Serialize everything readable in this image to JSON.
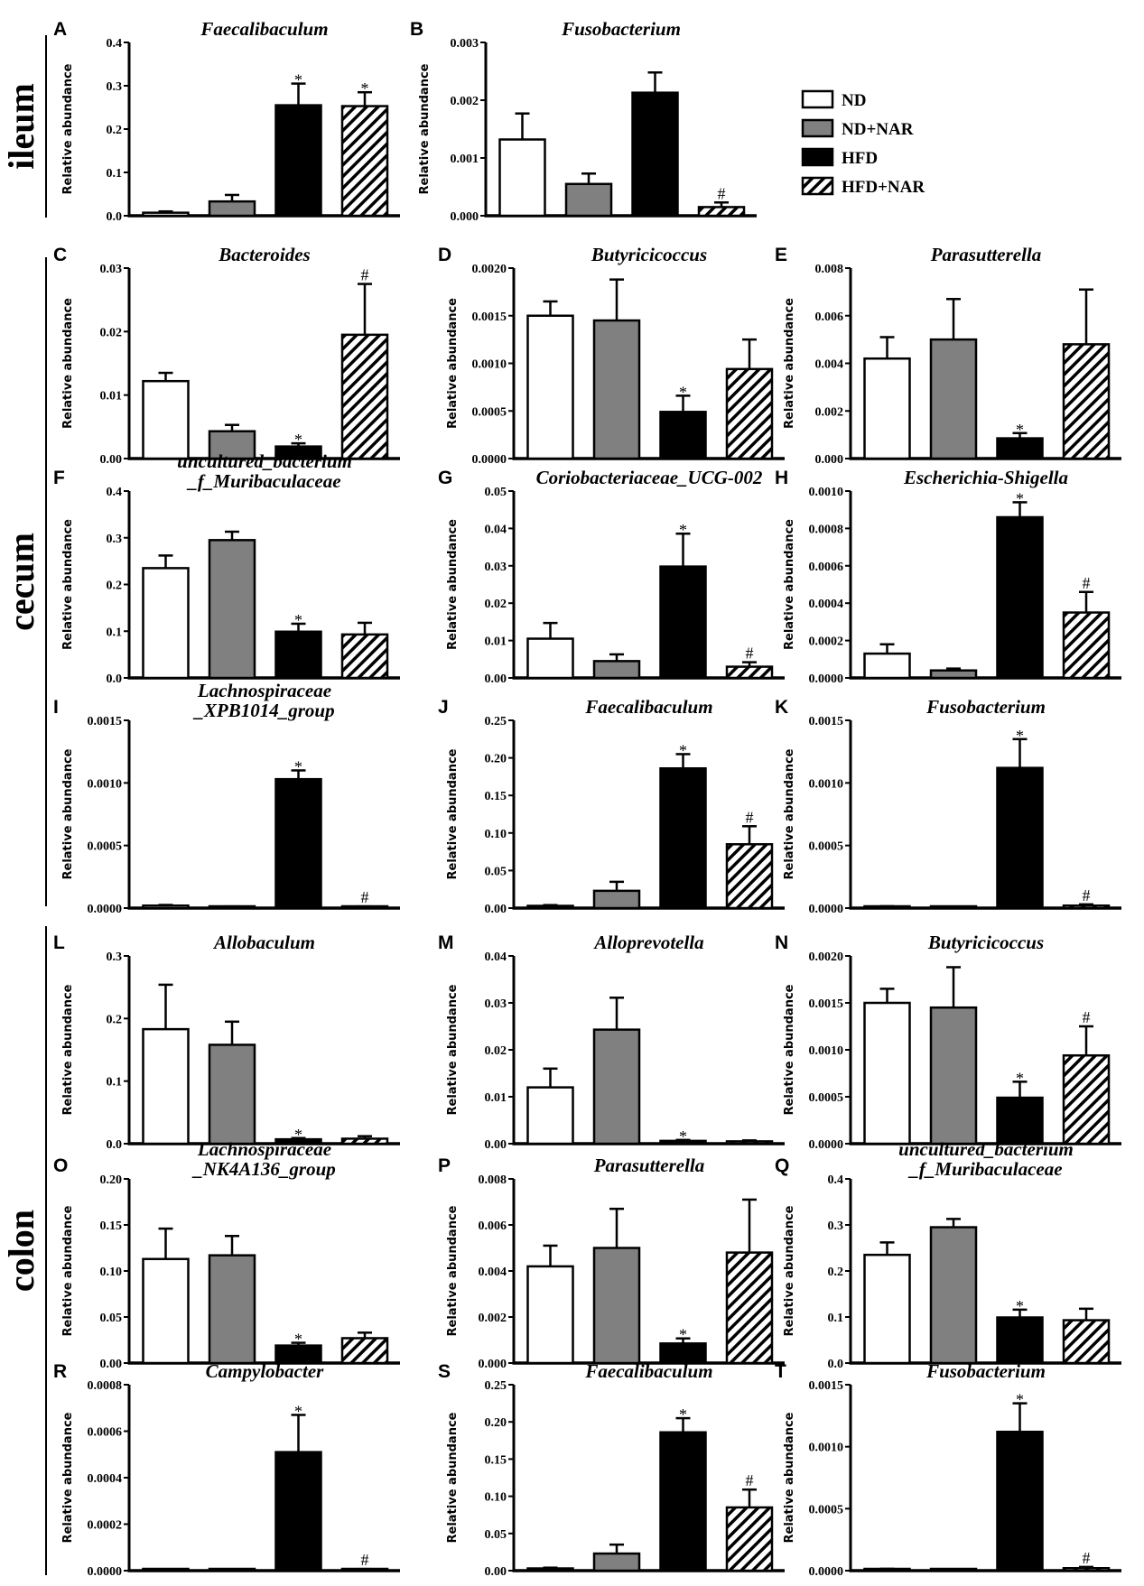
{
  "ylabel": "Relative abundance",
  "groups": [
    {
      "label": "ileum"
    },
    {
      "label": "cecum"
    },
    {
      "label": "colon"
    }
  ],
  "legend": [
    {
      "label": "ND",
      "fill": "#ffffff"
    },
    {
      "label": "ND+NAR",
      "fill": "#808080"
    },
    {
      "label": "HFD",
      "fill": "#000000"
    },
    {
      "label": "HFD+NAR",
      "fill": "hatch"
    }
  ],
  "colors": {
    "ND": "#ffffff",
    "ND+NAR": "#808080",
    "HFD": "#000000",
    "HFD+NAR": "hatched black/white"
  },
  "chart_data": [
    {
      "type": "bar",
      "letter": "A",
      "tissue": "ileum",
      "title": [
        "Faecalibaculum"
      ],
      "ylim": [
        0,
        0.4
      ],
      "ticks": [
        "0.0",
        "0.1",
        "0.2",
        "0.3",
        "0.4"
      ],
      "categories": [
        "ND",
        "ND+NAR",
        "HFD",
        "HFD+NAR"
      ],
      "values": [
        0.007,
        0.033,
        0.255,
        0.253
      ],
      "errors": [
        0.003,
        0.015,
        0.05,
        0.032
      ],
      "sig": [
        "",
        "",
        "*",
        "*"
      ]
    },
    {
      "type": "bar",
      "letter": "B",
      "tissue": "ileum",
      "title": [
        "Fusobacterium"
      ],
      "ylim": [
        0,
        0.003
      ],
      "ticks": [
        "0.000",
        "0.001",
        "0.002",
        "0.003"
      ],
      "categories": [
        "ND",
        "ND+NAR",
        "HFD",
        "HFD+NAR"
      ],
      "values": [
        0.00132,
        0.00055,
        0.00213,
        0.00015
      ],
      "errors": [
        0.00045,
        0.00018,
        0.00035,
        8e-05
      ],
      "sig": [
        "",
        "",
        "",
        "#"
      ]
    },
    {
      "type": "bar",
      "letter": "C",
      "tissue": "cecum",
      "title": [
        "Bacteroides"
      ],
      "ylim": [
        0,
        0.03
      ],
      "ticks": [
        "0.00",
        "0.01",
        "0.02",
        "0.03"
      ],
      "categories": [
        "ND",
        "ND+NAR",
        "HFD",
        "HFD+NAR"
      ],
      "values": [
        0.0122,
        0.0043,
        0.0019,
        0.0195
      ],
      "errors": [
        0.0013,
        0.001,
        0.0005,
        0.008
      ],
      "sig": [
        "",
        "",
        "*",
        "#"
      ]
    },
    {
      "type": "bar",
      "letter": "D",
      "tissue": "cecum",
      "title": [
        "Butyricicoccus"
      ],
      "ylim": [
        0,
        0.002
      ],
      "ticks": [
        "0.0000",
        "0.0005",
        "0.0010",
        "0.0015",
        "0.0020"
      ],
      "categories": [
        "ND",
        "ND+NAR",
        "HFD",
        "HFD+NAR"
      ],
      "values": [
        0.0015,
        0.00145,
        0.00049,
        0.00094
      ],
      "errors": [
        0.00015,
        0.00043,
        0.00017,
        0.00031
      ],
      "sig": [
        "",
        "",
        "*",
        ""
      ]
    },
    {
      "type": "bar",
      "letter": "E",
      "tissue": "cecum",
      "title": [
        "Parasutterella"
      ],
      "ylim": [
        0,
        0.008
      ],
      "ticks": [
        "0.000",
        "0.002",
        "0.004",
        "0.006",
        "0.008"
      ],
      "categories": [
        "ND",
        "ND+NAR",
        "HFD",
        "HFD+NAR"
      ],
      "values": [
        0.0042,
        0.005,
        0.00085,
        0.0048
      ],
      "errors": [
        0.0009,
        0.0017,
        0.00022,
        0.0023
      ],
      "sig": [
        "",
        "",
        "*",
        ""
      ]
    },
    {
      "type": "bar",
      "letter": "F",
      "tissue": "cecum",
      "title": [
        "uncultured_bacterium",
        "_f_Muribaculaceae"
      ],
      "ylim": [
        0,
        0.4
      ],
      "ticks": [
        "0.0",
        "0.1",
        "0.2",
        "0.3",
        "0.4"
      ],
      "categories": [
        "ND",
        "ND+NAR",
        "HFD",
        "HFD+NAR"
      ],
      "values": [
        0.235,
        0.295,
        0.099,
        0.093
      ],
      "errors": [
        0.027,
        0.018,
        0.017,
        0.025
      ],
      "sig": [
        "",
        "",
        "*",
        ""
      ]
    },
    {
      "type": "bar",
      "letter": "G",
      "tissue": "cecum",
      "title": [
        "Coriobacteriaceae_UCG-002"
      ],
      "ylim": [
        0,
        0.05
      ],
      "ticks": [
        "0.00",
        "0.01",
        "0.02",
        "0.03",
        "0.04",
        "0.05"
      ],
      "categories": [
        "ND",
        "ND+NAR",
        "HFD",
        "HFD+NAR"
      ],
      "values": [
        0.0105,
        0.0045,
        0.0298,
        0.003
      ],
      "errors": [
        0.0042,
        0.0018,
        0.0088,
        0.0012
      ],
      "sig": [
        "",
        "",
        "*",
        "#"
      ]
    },
    {
      "type": "bar",
      "letter": "H",
      "tissue": "cecum",
      "title": [
        "Escherichia-Shigella"
      ],
      "ylim": [
        0,
        0.001
      ],
      "ticks": [
        "0.0000",
        "0.0002",
        "0.0004",
        "0.0006",
        "0.0008",
        "0.0010"
      ],
      "categories": [
        "ND",
        "ND+NAR",
        "HFD",
        "HFD+NAR"
      ],
      "values": [
        0.00013,
        4e-05,
        0.00086,
        0.00035
      ],
      "errors": [
        5e-05,
        1e-05,
        8e-05,
        0.00011
      ],
      "sig": [
        "",
        "",
        "*",
        "#"
      ]
    },
    {
      "type": "bar",
      "letter": "I",
      "tissue": "cecum",
      "title": [
        "Lachnospiraceae",
        "_XPB1014_group"
      ],
      "ylim": [
        0,
        0.0015
      ],
      "ticks": [
        "0.0000",
        "0.0005",
        "0.0010",
        "0.0015"
      ],
      "categories": [
        "ND",
        "ND+NAR",
        "HFD",
        "HFD+NAR"
      ],
      "values": [
        2e-05,
        1e-05,
        0.00103,
        1e-05
      ],
      "errors": [
        5e-06,
        3e-06,
        7e-05,
        3e-06
      ],
      "sig": [
        "",
        "",
        "*",
        "#"
      ]
    },
    {
      "type": "bar",
      "letter": "J",
      "tissue": "cecum",
      "title": [
        "Faecalibaculum"
      ],
      "ylim": [
        0,
        0.25
      ],
      "ticks": [
        "0.00",
        "0.05",
        "0.10",
        "0.15",
        "0.20",
        "0.25"
      ],
      "categories": [
        "ND",
        "ND+NAR",
        "HFD",
        "HFD+NAR"
      ],
      "values": [
        0.003,
        0.023,
        0.186,
        0.085
      ],
      "errors": [
        0.001,
        0.012,
        0.019,
        0.024
      ],
      "sig": [
        "",
        "",
        "*",
        "#"
      ]
    },
    {
      "type": "bar",
      "letter": "K",
      "tissue": "cecum",
      "title": [
        "Fusobacterium"
      ],
      "ylim": [
        0,
        0.0015
      ],
      "ticks": [
        "0.0000",
        "0.0005",
        "0.0010",
        "0.0015"
      ],
      "categories": [
        "ND",
        "ND+NAR",
        "HFD",
        "HFD+NAR"
      ],
      "values": [
        1e-05,
        5e-06,
        0.00112,
        2e-05
      ],
      "errors": [
        5e-06,
        2e-06,
        0.00023,
        1e-05
      ],
      "sig": [
        "",
        "",
        "*",
        "#"
      ]
    },
    {
      "type": "bar",
      "letter": "L",
      "tissue": "colon",
      "title": [
        "Allobaculum"
      ],
      "ylim": [
        0,
        0.3
      ],
      "ticks": [
        "0.0",
        "0.1",
        "0.2",
        "0.3"
      ],
      "categories": [
        "ND",
        "ND+NAR",
        "HFD",
        "HFD+NAR"
      ],
      "values": [
        0.183,
        0.158,
        0.007,
        0.008
      ],
      "errors": [
        0.071,
        0.037,
        0.002,
        0.004
      ],
      "sig": [
        "",
        "",
        "*",
        ""
      ]
    },
    {
      "type": "bar",
      "letter": "M",
      "tissue": "colon",
      "title": [
        "Alloprevotella"
      ],
      "ylim": [
        0,
        0.04
      ],
      "ticks": [
        "0.00",
        "0.01",
        "0.02",
        "0.03",
        "0.04"
      ],
      "categories": [
        "ND",
        "ND+NAR",
        "HFD",
        "HFD+NAR"
      ],
      "values": [
        0.012,
        0.0243,
        0.0006,
        0.0005
      ],
      "errors": [
        0.004,
        0.0068,
        0.0002,
        0.0002
      ],
      "sig": [
        "",
        "",
        "*",
        ""
      ]
    },
    {
      "type": "bar",
      "letter": "N",
      "tissue": "colon",
      "title": [
        "Butyricicoccus"
      ],
      "ylim": [
        0,
        0.002
      ],
      "ticks": [
        "0.0000",
        "0.0005",
        "0.0010",
        "0.0015",
        "0.0020"
      ],
      "categories": [
        "ND",
        "ND+NAR",
        "HFD",
        "HFD+NAR"
      ],
      "values": [
        0.0015,
        0.00145,
        0.00049,
        0.00094
      ],
      "errors": [
        0.00015,
        0.00043,
        0.00017,
        0.00031
      ],
      "sig": [
        "",
        "",
        "*",
        "#"
      ]
    },
    {
      "type": "bar",
      "letter": "O",
      "tissue": "colon",
      "title": [
        "Lachnospiraceae",
        "_NK4A136_group"
      ],
      "ylim": [
        0,
        0.2
      ],
      "ticks": [
        "0.00",
        "0.05",
        "0.10",
        "0.15",
        "0.20"
      ],
      "categories": [
        "ND",
        "ND+NAR",
        "HFD",
        "HFD+NAR"
      ],
      "values": [
        0.113,
        0.117,
        0.019,
        0.027
      ],
      "errors": [
        0.033,
        0.021,
        0.003,
        0.006
      ],
      "sig": [
        "",
        "",
        "*",
        ""
      ]
    },
    {
      "type": "bar",
      "letter": "P",
      "tissue": "colon",
      "title": [
        "Parasutterella"
      ],
      "ylim": [
        0,
        0.008
      ],
      "ticks": [
        "0.000",
        "0.002",
        "0.004",
        "0.006",
        "0.008"
      ],
      "categories": [
        "ND",
        "ND+NAR",
        "HFD",
        "HFD+NAR"
      ],
      "values": [
        0.0042,
        0.005,
        0.00085,
        0.0048
      ],
      "errors": [
        0.0009,
        0.0017,
        0.00022,
        0.0023
      ],
      "sig": [
        "",
        "",
        "*",
        ""
      ]
    },
    {
      "type": "bar",
      "letter": "Q",
      "tissue": "colon",
      "title": [
        "uncultured_bacterium",
        "_f_Muribaculaceae"
      ],
      "ylim": [
        0,
        0.4
      ],
      "ticks": [
        "0.0",
        "0.1",
        "0.2",
        "0.3",
        "0.4"
      ],
      "categories": [
        "ND",
        "ND+NAR",
        "HFD",
        "HFD+NAR"
      ],
      "values": [
        0.235,
        0.295,
        0.099,
        0.093
      ],
      "errors": [
        0.027,
        0.018,
        0.017,
        0.025
      ],
      "sig": [
        "",
        "",
        "*",
        ""
      ]
    },
    {
      "type": "bar",
      "letter": "R",
      "tissue": "colon",
      "title": [
        "Campylobacter"
      ],
      "ylim": [
        0,
        0.0008
      ],
      "ticks": [
        "0.0000",
        "0.0002",
        "0.0004",
        "0.0006",
        "0.0008"
      ],
      "categories": [
        "ND",
        "ND+NAR",
        "HFD",
        "HFD+NAR"
      ],
      "values": [
        3e-06,
        3e-06,
        0.00051,
        5e-06
      ],
      "errors": [
        0,
        0,
        0.00016,
        2e-06
      ],
      "sig": [
        "",
        "",
        "*",
        "#"
      ]
    },
    {
      "type": "bar",
      "letter": "S",
      "tissue": "colon",
      "title": [
        "Faecalibaculum"
      ],
      "ylim": [
        0,
        0.25
      ],
      "ticks": [
        "0.00",
        "0.05",
        "0.10",
        "0.15",
        "0.20",
        "0.25"
      ],
      "categories": [
        "ND",
        "ND+NAR",
        "HFD",
        "HFD+NAR"
      ],
      "values": [
        0.003,
        0.023,
        0.186,
        0.085
      ],
      "errors": [
        0.001,
        0.012,
        0.019,
        0.024
      ],
      "sig": [
        "",
        "",
        "*",
        "#"
      ]
    },
    {
      "type": "bar",
      "letter": "T",
      "tissue": "colon",
      "title": [
        "Fusobacterium"
      ],
      "ylim": [
        0,
        0.0015
      ],
      "ticks": [
        "0.0000",
        "0.0005",
        "0.0010",
        "0.0015"
      ],
      "categories": [
        "ND",
        "ND+NAR",
        "HFD",
        "HFD+NAR"
      ],
      "values": [
        1e-05,
        5e-06,
        0.00112,
        2e-05
      ],
      "errors": [
        5e-06,
        2e-06,
        0.00023,
        1e-05
      ],
      "sig": [
        "",
        "",
        "*",
        "#"
      ]
    }
  ]
}
